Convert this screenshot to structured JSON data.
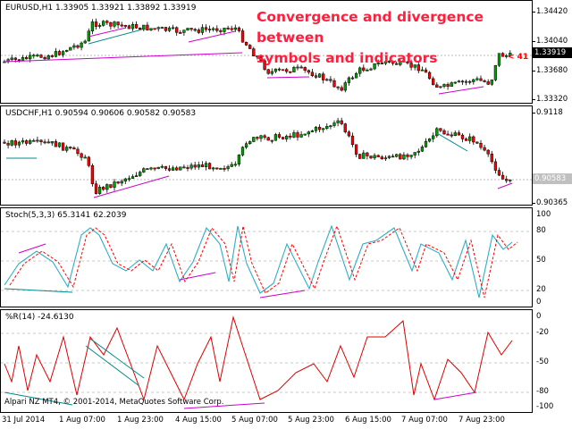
{
  "overlay": {
    "line1": "Convergence and divergence between",
    "line2": "symbols and indicators"
  },
  "main": {
    "label": "EURUSD,H1  1.33905 1.33921 1.33892 1.33919",
    "ticks": [
      "1.34420",
      "1.34040",
      "1.33680",
      "1.33320"
    ],
    "current": "1.33919",
    "signal": "< 41"
  },
  "pane2": {
    "label": "USDCHF,H1 0.90594 0.90606 0.90582 0.90583",
    "ticks": [
      "0.9118",
      "0.90365"
    ],
    "current": "0.90583"
  },
  "pane3": {
    "label": "Stoch(5,3,3) 65.3141 62.2039",
    "ticks": [
      "100",
      "80",
      "50",
      "20",
      "0"
    ]
  },
  "pane4": {
    "label": "%R(14) -24.6130",
    "ticks": [
      "0",
      "-20",
      "-50",
      "-80",
      "-100"
    ]
  },
  "copyright": "Alpari NZ MT4, © 2001-2014, MetaQuotes Software Corp.",
  "time_axis": [
    "31 Jul 2014",
    "1 Aug 07:00",
    "1 Aug 23:00",
    "4 Aug 15:00",
    "5 Aug 07:00",
    "5 Aug 23:00",
    "6 Aug 15:00",
    "7 Aug 07:00",
    "7 Aug 23:00"
  ],
  "colors": {
    "bull": "#00a000",
    "bear": "#ff0000",
    "divergence_line": "#cc00cc",
    "convergence_line": "#008b8b",
    "stoch_main": "#2eaec5",
    "stoch_signal": "#ff0000",
    "wpr": "#dd0000",
    "title": "#ff1f3d"
  }
}
